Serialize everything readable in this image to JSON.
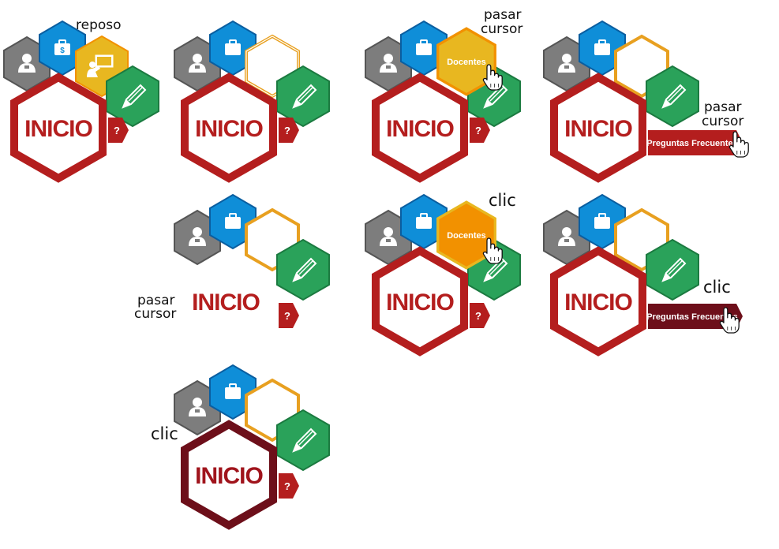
{
  "labels": {
    "inicio": "INICIO",
    "question": "?",
    "docentes": "Docentes",
    "faq": "Preguntas Frecuentes",
    "dollar": "$"
  },
  "annotations": {
    "rest": "reposo",
    "hover_1": "pasar",
    "hover_2": "cursor",
    "click": "clic"
  },
  "icons": [
    "user-icon",
    "briefcase-icon",
    "teacher-board-icon",
    "pencil-icon",
    "hand-cursor-icon"
  ],
  "colors": {
    "red": "#b41e1e",
    "dark_red": "#6d0f1a",
    "yellow": "#e8b720",
    "orange": "#f29100",
    "blue": "#0f8ed8",
    "green": "#2aa25a",
    "gray": "#7d7d7d"
  }
}
